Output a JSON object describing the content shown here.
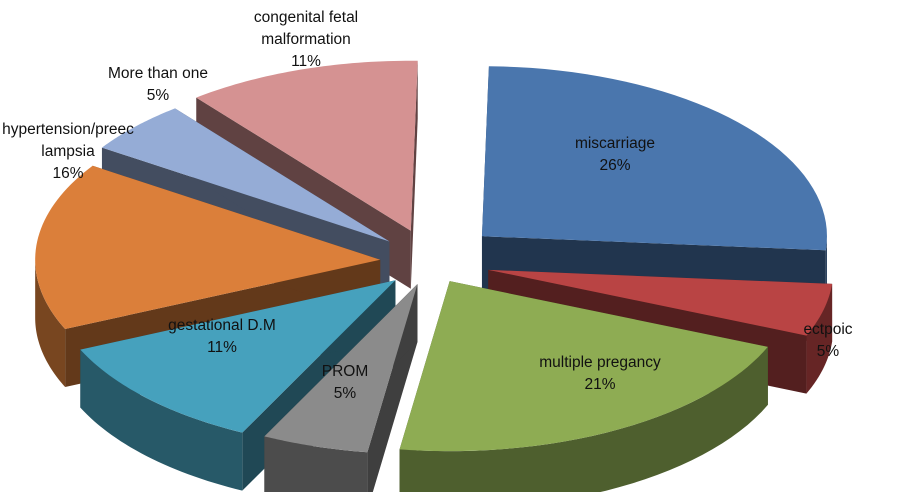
{
  "chart_data": {
    "type": "pie",
    "variant": "3d-exploded",
    "title": "",
    "slices": [
      {
        "label": [
          "miscarriage"
        ],
        "value": 26,
        "pct": "26%",
        "color": "#4a76ad"
      },
      {
        "label": [
          "ectpoic"
        ],
        "value": 5,
        "pct": "5%",
        "color": "#b94444"
      },
      {
        "label": [
          "multiple pregancy"
        ],
        "value": 21,
        "pct": "21%",
        "color": "#8eac53"
      },
      {
        "label": [
          "PROM"
        ],
        "value": 5,
        "pct": "5%",
        "color": "#8b8b8b"
      },
      {
        "label": [
          "gestational D.M"
        ],
        "value": 11,
        "pct": "11%",
        "color": "#46a1bd"
      },
      {
        "label": [
          "hypertension/preec",
          "lampsia"
        ],
        "value": 16,
        "pct": "16%",
        "color": "#db7f3a"
      },
      {
        "label": [
          "More than one"
        ],
        "value": 5,
        "pct": "5%",
        "color": "#95acd6"
      },
      {
        "label": [
          "congenital fetal",
          "malformation"
        ],
        "value": 11,
        "pct": "11%",
        "color": "#d59292"
      }
    ]
  }
}
